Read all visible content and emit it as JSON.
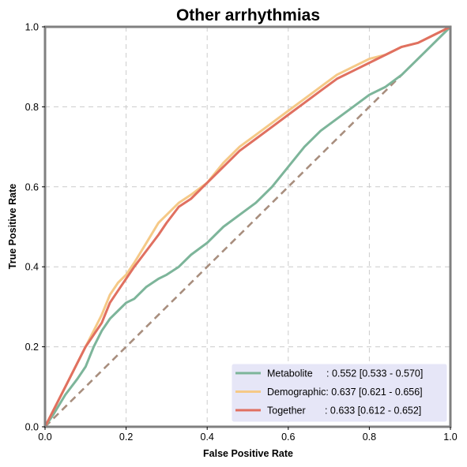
{
  "chart_data": {
    "type": "line",
    "title": "Other arrhythmias",
    "xlabel": "False Positive Rate",
    "ylabel": "True Positive Rate",
    "xlim": [
      0,
      1
    ],
    "ylim": [
      0,
      1
    ],
    "xticks": [
      "0.0",
      "0.2",
      "0.4",
      "0.6",
      "0.8",
      "1.0"
    ],
    "yticks": [
      "0.0",
      "0.2",
      "0.4",
      "0.6",
      "0.8",
      "1.0"
    ],
    "grid": true,
    "legend_position": "lower-right",
    "legend_bg": "#e6e6f7",
    "frame_color": "#808080",
    "series": [
      {
        "name": "Metabolite",
        "label": "Metabolite     : 0.552 [0.533 - 0.570]",
        "color": "#7db59a",
        "points": [
          [
            0,
            0
          ],
          [
            0.02,
            0.03
          ],
          [
            0.05,
            0.08
          ],
          [
            0.08,
            0.12
          ],
          [
            0.1,
            0.15
          ],
          [
            0.12,
            0.2
          ],
          [
            0.14,
            0.24
          ],
          [
            0.16,
            0.27
          ],
          [
            0.18,
            0.29
          ],
          [
            0.2,
            0.31
          ],
          [
            0.22,
            0.32
          ],
          [
            0.25,
            0.35
          ],
          [
            0.28,
            0.37
          ],
          [
            0.3,
            0.38
          ],
          [
            0.33,
            0.4
          ],
          [
            0.36,
            0.43
          ],
          [
            0.4,
            0.46
          ],
          [
            0.44,
            0.5
          ],
          [
            0.48,
            0.53
          ],
          [
            0.52,
            0.56
          ],
          [
            0.56,
            0.6
          ],
          [
            0.6,
            0.65
          ],
          [
            0.64,
            0.7
          ],
          [
            0.68,
            0.74
          ],
          [
            0.72,
            0.77
          ],
          [
            0.76,
            0.8
          ],
          [
            0.8,
            0.83
          ],
          [
            0.84,
            0.85
          ],
          [
            0.88,
            0.88
          ],
          [
            0.92,
            0.92
          ],
          [
            0.96,
            0.96
          ],
          [
            1,
            1
          ]
        ]
      },
      {
        "name": "Demographic",
        "label": "Demographic: 0.637 [0.621 - 0.656]",
        "color": "#f5c987",
        "points": [
          [
            0,
            0
          ],
          [
            0.02,
            0.04
          ],
          [
            0.05,
            0.1
          ],
          [
            0.08,
            0.16
          ],
          [
            0.1,
            0.2
          ],
          [
            0.12,
            0.24
          ],
          [
            0.14,
            0.28
          ],
          [
            0.16,
            0.33
          ],
          [
            0.18,
            0.36
          ],
          [
            0.2,
            0.38
          ],
          [
            0.22,
            0.41
          ],
          [
            0.25,
            0.46
          ],
          [
            0.28,
            0.51
          ],
          [
            0.3,
            0.53
          ],
          [
            0.33,
            0.56
          ],
          [
            0.36,
            0.58
          ],
          [
            0.4,
            0.61
          ],
          [
            0.44,
            0.66
          ],
          [
            0.48,
            0.7
          ],
          [
            0.52,
            0.73
          ],
          [
            0.56,
            0.76
          ],
          [
            0.6,
            0.79
          ],
          [
            0.64,
            0.82
          ],
          [
            0.68,
            0.85
          ],
          [
            0.72,
            0.88
          ],
          [
            0.76,
            0.9
          ],
          [
            0.8,
            0.92
          ],
          [
            0.84,
            0.93
          ],
          [
            0.88,
            0.95
          ],
          [
            0.92,
            0.96
          ],
          [
            0.96,
            0.98
          ],
          [
            1,
            1
          ]
        ]
      },
      {
        "name": "Together",
        "label": "Together       : 0.633 [0.612 - 0.652]",
        "color": "#e07060",
        "points": [
          [
            0,
            0
          ],
          [
            0.02,
            0.04
          ],
          [
            0.05,
            0.1
          ],
          [
            0.08,
            0.16
          ],
          [
            0.1,
            0.2
          ],
          [
            0.12,
            0.23
          ],
          [
            0.14,
            0.26
          ],
          [
            0.16,
            0.31
          ],
          [
            0.18,
            0.34
          ],
          [
            0.2,
            0.37
          ],
          [
            0.22,
            0.4
          ],
          [
            0.25,
            0.44
          ],
          [
            0.28,
            0.48
          ],
          [
            0.3,
            0.51
          ],
          [
            0.33,
            0.55
          ],
          [
            0.36,
            0.57
          ],
          [
            0.4,
            0.61
          ],
          [
            0.44,
            0.65
          ],
          [
            0.48,
            0.69
          ],
          [
            0.52,
            0.72
          ],
          [
            0.56,
            0.75
          ],
          [
            0.6,
            0.78
          ],
          [
            0.64,
            0.81
          ],
          [
            0.68,
            0.84
          ],
          [
            0.72,
            0.87
          ],
          [
            0.76,
            0.89
          ],
          [
            0.8,
            0.91
          ],
          [
            0.84,
            0.93
          ],
          [
            0.88,
            0.95
          ],
          [
            0.92,
            0.96
          ],
          [
            0.96,
            0.98
          ],
          [
            1,
            1
          ]
        ]
      }
    ],
    "reference_line": {
      "color": "#a88e7e",
      "points": [
        [
          0,
          0
        ],
        [
          1,
          1
        ]
      ]
    }
  }
}
